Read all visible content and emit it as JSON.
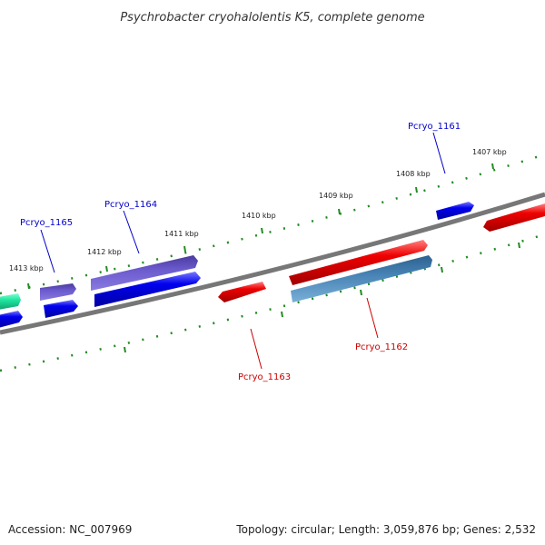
{
  "title": "Psychrobacter cryohalolentis K5, complete genome",
  "footer": {
    "accession": "Accession: NC_007969",
    "summary": "Topology: circular; Length: 3,059,876 bp; Genes: 2,532"
  },
  "scale_labels": [
    "1407 kbp",
    "1408 kbp",
    "1409 kbp",
    "1410 kbp",
    "1411 kbp",
    "1412 kbp",
    "1413 kbp"
  ],
  "gene_labels": [
    {
      "name": "Pcryo_1161",
      "color": "#0000cc"
    },
    {
      "name": "Pcryo_1162",
      "color": "#cc0000"
    },
    {
      "name": "Pcryo_1163",
      "color": "#cc0000"
    },
    {
      "name": "Pcryo_1164",
      "color": "#0000cc"
    },
    {
      "name": "Pcryo_1165",
      "color": "#0000cc"
    }
  ],
  "colors": {
    "forward_strand": "#0000ee",
    "reverse_strand": "#ee0000",
    "highlight_purple": "#6a5acd",
    "highlight_steel": "#4682b4",
    "highlight_teal": "#20e6a0",
    "backbone": "#777777",
    "ticks": "#228b22"
  }
}
